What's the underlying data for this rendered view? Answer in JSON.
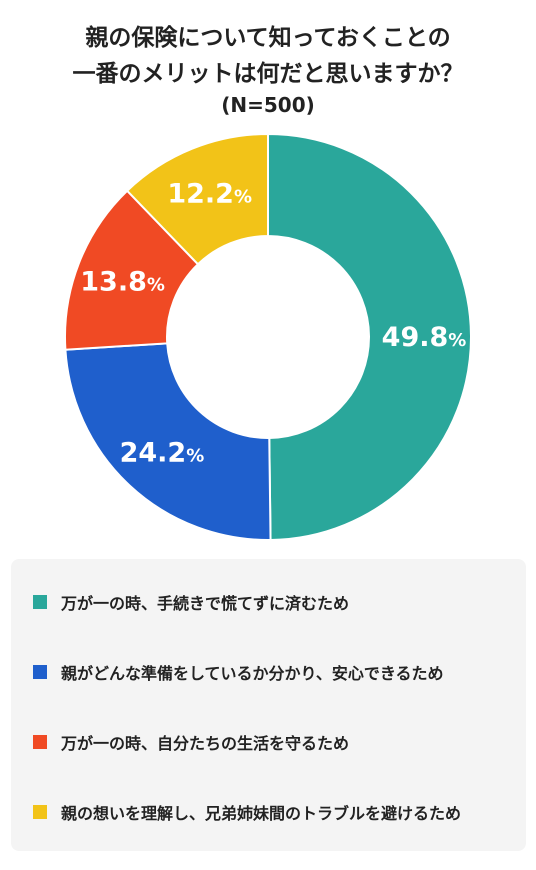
{
  "title": {
    "line1": "親の保険について知っておくことの",
    "line2": "一番のメリットは何だと思いますか？"
  },
  "subtitle": "(N=500)",
  "chart_data": {
    "type": "pie",
    "variant": "donut",
    "categories": [
      "万が一の時、手続きで慌てずに済むため",
      "親がどんな準備をしているか分かり、安心できるため",
      "万が一の時、自分たちの生活を守るため",
      "親の想いを理解し、兄弟姉妹間のトラブルを避けるため"
    ],
    "values": [
      49.8,
      24.2,
      13.8,
      12.2
    ],
    "labels": [
      "49.8",
      "24.2",
      "13.8",
      "12.2"
    ],
    "unit": "%",
    "colors": [
      "#2aa79b",
      "#1f5fcc",
      "#f04a24",
      "#f2c318"
    ],
    "start_angle_deg": 0,
    "direction": "clockwise",
    "legend_position": "bottom"
  },
  "legend": {
    "items": [
      {
        "label": "万が一の時、手続きで慌てずに済むため",
        "color": "#2aa79b"
      },
      {
        "label": "親がどんな準備をしているか分かり、安心できるため",
        "color": "#1f5fcc"
      },
      {
        "label": "万が一の時、自分たちの生活を守るため",
        "color": "#f04a24"
      },
      {
        "label": "親の想いを理解し、兄弟姉妹間のトラブルを避けるため",
        "color": "#f2c318"
      }
    ]
  }
}
